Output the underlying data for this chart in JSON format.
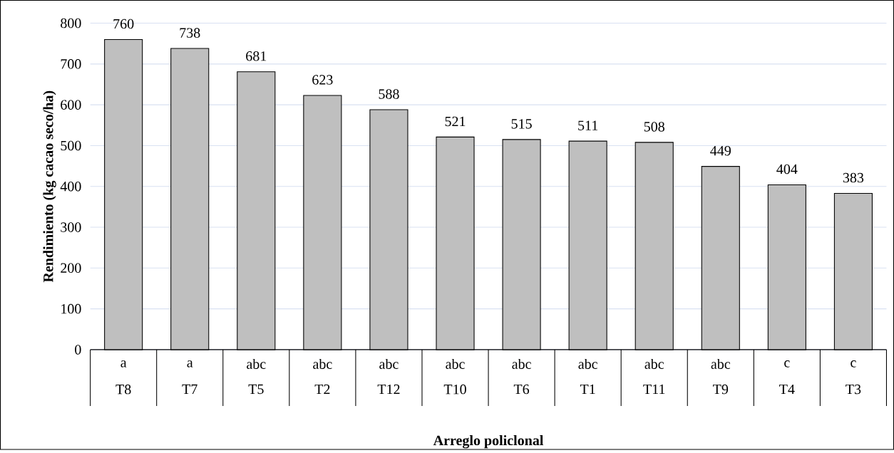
{
  "chart_data": {
    "type": "bar",
    "xlabel": "Arreglo policlonal",
    "ylabel": "Rendimiento (kg cacao seco/ha)",
    "categories": [
      "T8",
      "T7",
      "T5",
      "T2",
      "T12",
      "T10",
      "T6",
      "T1",
      "T11",
      "T9",
      "T4",
      "T3"
    ],
    "values": [
      760,
      738,
      681,
      623,
      588,
      521,
      515,
      511,
      508,
      449,
      404,
      383
    ],
    "color": "#bfbfbf",
    "ylim": [
      0,
      800
    ],
    "yticks": [
      0,
      100,
      200,
      300,
      400,
      500,
      600,
      700,
      800
    ],
    "grid": "y",
    "data_labels": true,
    "annotations": [
      "a",
      "a",
      "abc",
      "abc",
      "abc",
      "abc",
      "abc",
      "abc",
      "abc",
      "abc",
      "c",
      "c"
    ]
  }
}
